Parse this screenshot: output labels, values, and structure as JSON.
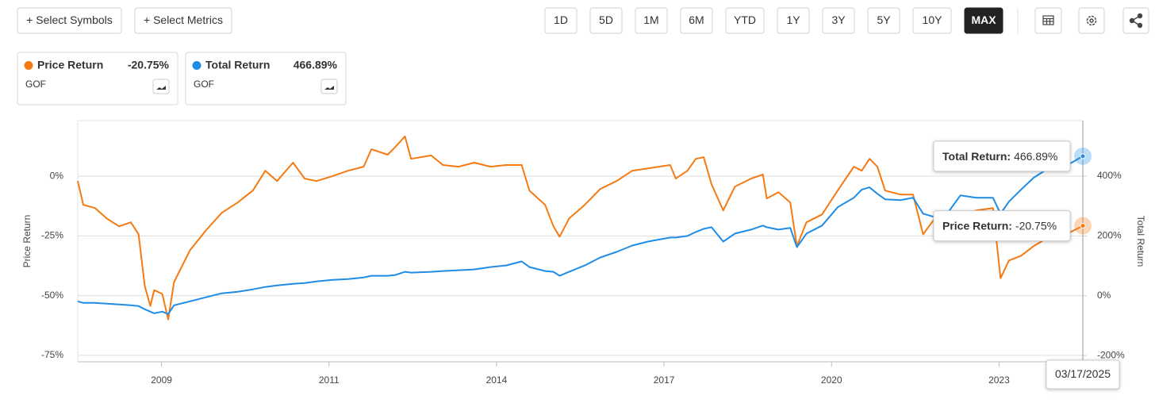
{
  "toolbar": {
    "symbols": "+ Select Symbols",
    "metrics": "+ Select Metrics",
    "ranges": [
      "1D",
      "5D",
      "1M",
      "6M",
      "YTD",
      "1Y",
      "3Y",
      "5Y",
      "10Y",
      "MAX"
    ],
    "active": "MAX"
  },
  "chart_data": {
    "type": "line",
    "y_label": "Price Return",
    "y2_label": "Total Return",
    "legend_values": [
      "-20.75%",
      "466.89%"
    ],
    "tooltips": [
      {
        "label": "Total Return:",
        "value": "466.89%"
      },
      {
        "label": "Price Return:",
        "value": "-20.75%"
      }
    ],
    "date_label": "03/17/2025",
    "xlim": [
      2007.5,
      2025.21
    ],
    "xticks": [
      2009,
      2011,
      2014,
      2017,
      2020,
      2023
    ],
    "ylim": [
      -77.7,
      23.3
    ],
    "yticks": [
      {
        "value": 0,
        "label": "0%"
      },
      {
        "value": -25,
        "label": "-25%"
      },
      {
        "value": -50,
        "label": "-50%"
      },
      {
        "value": -75,
        "label": "-75%"
      }
    ],
    "y2lim": [
      -221,
      586
    ],
    "y2ticks": [
      {
        "value": 400,
        "label": "400%"
      },
      {
        "value": 200,
        "label": "200%"
      },
      {
        "value": 0,
        "label": "0%"
      },
      {
        "value": -200,
        "label": "-200%"
      }
    ],
    "grid": true,
    "x": [
      2007.5,
      2007.6,
      2007.81,
      2008.02,
      2008.24,
      2008.45,
      2008.59,
      2008.7,
      2008.8,
      2008.87,
      2009.01,
      2009.08,
      2009.15,
      2009.34,
      2009.53,
      2009.72,
      2009.91,
      2010.09,
      2010.24,
      2010.38,
      2010.57,
      2010.71,
      2010.85,
      2011.06,
      2011.34,
      2011.62,
      2011.76,
      2012.05,
      2012.19,
      2012.36,
      2012.47,
      2012.83,
      2013.04,
      2013.32,
      2013.6,
      2013.89,
      2014.17,
      2014.45,
      2014.59,
      2014.87,
      2015.02,
      2015.13,
      2015.3,
      2015.58,
      2015.86,
      2016.15,
      2016.43,
      2016.71,
      2017.11,
      2017.21,
      2017.42,
      2017.57,
      2017.71,
      2017.85,
      2018.06,
      2018.27,
      2018.56,
      2018.77,
      2018.84,
      2019.05,
      2019.26,
      2019.38,
      2019.55,
      2019.83,
      2020.11,
      2020.4,
      2020.54,
      2020.68,
      2020.82,
      2020.96,
      2021.24,
      2021.46,
      2021.64,
      2021.88,
      2022.09,
      2022.31,
      2022.59,
      2022.89,
      2023.04,
      2023.26,
      2023.58,
      2023.91,
      2024.34,
      2024.77,
      2025.21
    ],
    "series": [
      {
        "name": "Price Return",
        "symbol": "GOF",
        "color": "#f57a12",
        "axis": "y",
        "values": [
          -2.0,
          -12.0,
          -13.3,
          -17.7,
          -21.0,
          -19.3,
          -24.3,
          -46.0,
          -54.3,
          -47.7,
          -49.3,
          -60.0,
          -44.3,
          -31.0,
          -22.7,
          -15.3,
          -11.0,
          -6.0,
          2.3,
          -2.0,
          5.7,
          -1.0,
          -2.0,
          0,
          2.3,
          4.0,
          11.3,
          9.0,
          12.3,
          16.7,
          7.3,
          8.7,
          4.7,
          4.0,
          5.7,
          4.0,
          4.7,
          4.7,
          -6.0,
          -12.0,
          -21.0,
          -25.3,
          -17.7,
          -12.0,
          -5.3,
          -2.0,
          2.3,
          3.3,
          4.7,
          -1.0,
          2.3,
          7.3,
          8.0,
          -3.3,
          -14.3,
          -4.3,
          -1.0,
          0.7,
          -9.3,
          -6.7,
          -11.0,
          -29.3,
          -19.3,
          -16.0,
          -6.0,
          4.0,
          2.3,
          7.3,
          4.0,
          -6.0,
          -7.7,
          -7.7,
          -24.3,
          -16.7,
          -17.7,
          -16.0,
          -14.3,
          -13.3,
          -42.7,
          -35.3,
          -33.3,
          -29.3,
          -25.3,
          -24.3,
          -20.75
        ]
      },
      {
        "name": "Total Return",
        "symbol": "GOF",
        "color": "#1f8de6",
        "axis": "y2",
        "values": [
          -18.7,
          -24,
          -24,
          -26.7,
          -29.3,
          -32,
          -34.7,
          -45.3,
          -53.3,
          -58.7,
          -53.3,
          -61.3,
          -32,
          -18.7,
          -5.3,
          8,
          13.3,
          21.3,
          29.3,
          34.7,
          40,
          42.7,
          48,
          53.3,
          56,
          61.3,
          66.7,
          66.7,
          69.3,
          80,
          77.3,
          80,
          82.7,
          85.3,
          88,
          96,
          101.3,
          114.7,
          96,
          82.7,
          80,
          66.7,
          80,
          101.3,
          128,
          146.7,
          168,
          181.3,
          194.7,
          194.7,
          200,
          213.3,
          224,
          229.3,
          181.3,
          208,
          221.3,
          234.7,
          229.3,
          221.3,
          226.7,
          162.7,
          208,
          234.7,
          296,
          328,
          354.7,
          362.7,
          341.3,
          322.7,
          320,
          328,
          274.7,
          261.3,
          280,
          336,
          328,
          328,
          274.7,
          314.7,
          354.7,
          394.7,
          429.3,
          434.7,
          466.89
        ]
      }
    ]
  }
}
